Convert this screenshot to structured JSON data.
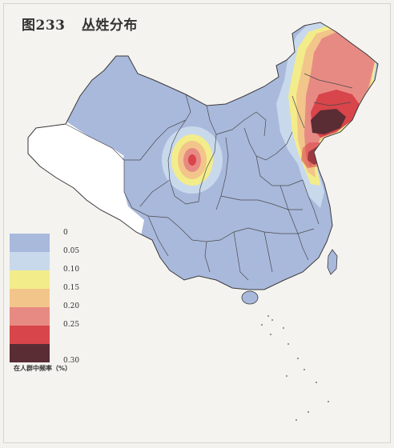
{
  "title": {
    "figure_number": "图233",
    "name": "丛姓分布"
  },
  "legend": {
    "bins": [
      {
        "label": "0",
        "color": "#a9b9dc"
      },
      {
        "label": "0.05",
        "color": "#c9d9ec"
      },
      {
        "label": "0.10",
        "color": "#f3ec8a"
      },
      {
        "label": "0.15",
        "color": "#f2c58a"
      },
      {
        "label": "0.20",
        "color": "#e88a84"
      },
      {
        "label": "0.25",
        "color": "#d8454a"
      },
      {
        "label": "0.30",
        "color": "#5a2c34"
      }
    ],
    "caption": "在人群中频率（%）"
  },
  "map": {
    "region": "China",
    "colors": {
      "base": "#a9b9dc",
      "blank": "#ffffff",
      "border": "#3a3a3a"
    }
  }
}
